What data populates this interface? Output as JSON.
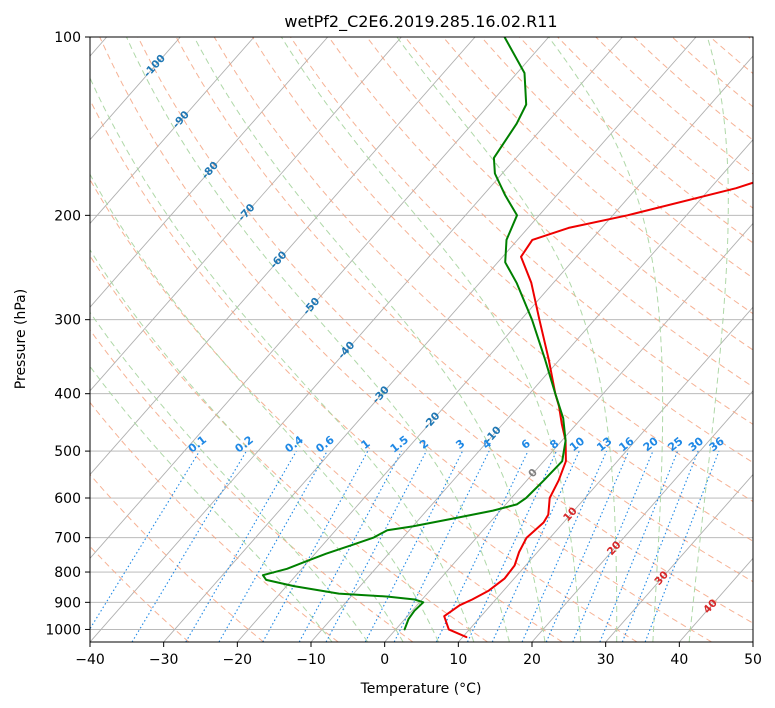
{
  "chart_data": {
    "type": "line",
    "subtype": "skew-t log-p",
    "title": "wetPf2_C2E6.2019.285.16.02.R11",
    "xlabel": "Temperature (°C)",
    "ylabel": "Pressure (hPa)",
    "xlim": [
      -40,
      50
    ],
    "ylim": [
      1050,
      100
    ],
    "y_scale": "log",
    "grid": true,
    "x_ticks": [
      "−40",
      "−30",
      "−20",
      "−10",
      "0",
      "10",
      "20",
      "30",
      "40",
      "50"
    ],
    "y_ticks": [
      "100",
      "200",
      "300",
      "400",
      "500",
      "600",
      "700",
      "800",
      "900",
      "1000"
    ],
    "isotherm_labels": [
      "-100",
      "-90",
      "-80",
      "-70",
      "-60",
      "-50",
      "-40",
      "-30",
      "-20",
      "-10",
      "0",
      "10",
      "20",
      "30",
      "40"
    ],
    "mixing_ratio_labels": [
      "0.1",
      "0.2",
      "0.4",
      "0.6",
      "1",
      "1.5",
      "2",
      "3",
      "4",
      "6",
      "8",
      "10",
      "13",
      "16",
      "20",
      "25",
      "30",
      "36"
    ],
    "colors": {
      "temperature": "#ee0000",
      "dewpoint": "#008000",
      "isotherm_label_cold": "#1f77b4",
      "isotherm_label_zero": "#808080",
      "isotherm_label_warm": "#d62728",
      "mixing_ratio": "#1e88e5",
      "dry_adiabat": "#f4a582",
      "moist_adiabat": "#a6d49f",
      "grid": "#b0b0b0"
    },
    "series": [
      {
        "name": "",
        "role": "temperature",
        "points": [
          {
            "p": 1030,
            "t": 10.5
          },
          {
            "p": 1000,
            "t": 7.2
          },
          {
            "p": 950,
            "t": 5.0
          },
          {
            "p": 910,
            "t": 5.8
          },
          {
            "p": 890,
            "t": 6.8
          },
          {
            "p": 860,
            "t": 8.0
          },
          {
            "p": 820,
            "t": 8.7
          },
          {
            "p": 780,
            "t": 8.5
          },
          {
            "p": 740,
            "t": 7.5
          },
          {
            "p": 700,
            "t": 6.8
          },
          {
            "p": 660,
            "t": 7.3
          },
          {
            "p": 640,
            "t": 7.0
          },
          {
            "p": 600,
            "t": 5.2
          },
          {
            "p": 560,
            "t": 4.3
          },
          {
            "p": 520,
            "t": 3.0
          },
          {
            "p": 480,
            "t": 0.5
          },
          {
            "p": 450,
            "t": -2.0
          },
          {
            "p": 420,
            "t": -4.5
          },
          {
            "p": 400,
            "t": -6.5
          },
          {
            "p": 350,
            "t": -11.5
          },
          {
            "p": 300,
            "t": -17.5
          },
          {
            "p": 260,
            "t": -23.0
          },
          {
            "p": 235,
            "t": -27.5
          },
          {
            "p": 220,
            "t": -28.0
          },
          {
            "p": 210,
            "t": -24.5
          },
          {
            "p": 200,
            "t": -18.0
          },
          {
            "p": 180,
            "t": -6.5
          },
          {
            "p": 160,
            "t": 2.5
          },
          {
            "p": 140,
            "t": 9.0
          },
          {
            "p": 120,
            "t": 13.0
          },
          {
            "p": 112,
            "t": 18.0
          },
          {
            "p": 100,
            "t": 24.5
          }
        ]
      },
      {
        "name": "",
        "role": "dewpoint",
        "points": [
          {
            "p": 1000,
            "t": 1.2
          },
          {
            "p": 960,
            "t": 0.5
          },
          {
            "p": 930,
            "t": 0.3
          },
          {
            "p": 900,
            "t": 0.5
          },
          {
            "p": 890,
            "t": -1.0
          },
          {
            "p": 880,
            "t": -5.0
          },
          {
            "p": 870,
            "t": -12.0
          },
          {
            "p": 845,
            "t": -19.0
          },
          {
            "p": 825,
            "t": -23.5
          },
          {
            "p": 810,
            "t": -24.5
          },
          {
            "p": 790,
            "t": -22.0
          },
          {
            "p": 770,
            "t": -20.5
          },
          {
            "p": 745,
            "t": -18.5
          },
          {
            "p": 720,
            "t": -16.0
          },
          {
            "p": 700,
            "t": -14.0
          },
          {
            "p": 680,
            "t": -13.0
          },
          {
            "p": 670,
            "t": -10.0
          },
          {
            "p": 650,
            "t": -5.5
          },
          {
            "p": 630,
            "t": -1.0
          },
          {
            "p": 615,
            "t": 1.5
          },
          {
            "p": 600,
            "t": 2.0
          },
          {
            "p": 560,
            "t": 2.3
          },
          {
            "p": 520,
            "t": 2.5
          },
          {
            "p": 480,
            "t": 0.5
          },
          {
            "p": 440,
            "t": -2.5
          },
          {
            "p": 400,
            "t": -6.5
          },
          {
            "p": 350,
            "t": -12.0
          },
          {
            "p": 300,
            "t": -18.5
          },
          {
            "p": 260,
            "t": -25.0
          },
          {
            "p": 240,
            "t": -29.0
          },
          {
            "p": 220,
            "t": -31.5
          },
          {
            "p": 200,
            "t": -33.0
          },
          {
            "p": 185,
            "t": -37.0
          },
          {
            "p": 170,
            "t": -41.0
          },
          {
            "p": 160,
            "t": -43.0
          },
          {
            "p": 140,
            "t": -44.0
          },
          {
            "p": 130,
            "t": -45.0
          },
          {
            "p": 115,
            "t": -49.0
          },
          {
            "p": 100,
            "t": -56.0
          }
        ]
      }
    ]
  }
}
